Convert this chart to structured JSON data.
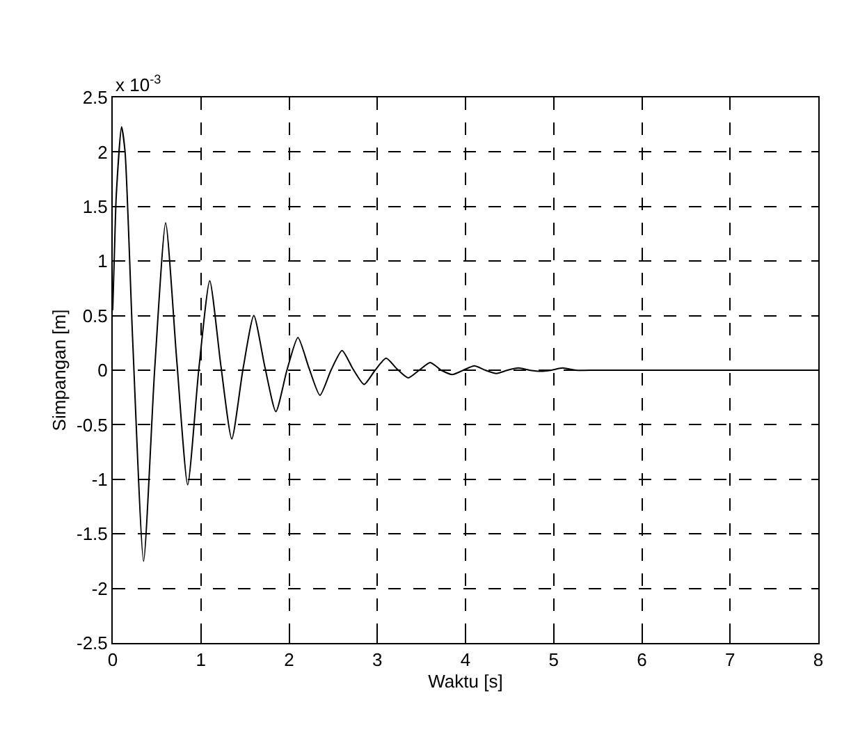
{
  "chart_data": {
    "type": "line",
    "xlabel": "Waktu [s]",
    "ylabel": "Simpangan [m]",
    "annotations": [
      "x 10$^{-3}$"
    ],
    "x": [
      0,
      0.02,
      0.04,
      0.1,
      0.14,
      0.225,
      0.35,
      0.475,
      0.6,
      0.725,
      0.85,
      0.975,
      1.1,
      1.225,
      1.35,
      1.475,
      1.6,
      1.725,
      1.85,
      1.975,
      2.1,
      2.225,
      2.35,
      2.475,
      2.6,
      2.725,
      2.85,
      2.975,
      3.1,
      3.225,
      3.35,
      3.475,
      3.6,
      3.725,
      3.85,
      3.975,
      4.1,
      4.225,
      4.35,
      4.475,
      4.6,
      4.725,
      4.85,
      4.975,
      5.1,
      5.25,
      5.5,
      6,
      6.5,
      7,
      7.5,
      8
    ],
    "series": [
      {
        "color": "#000000",
        "values": [
          0.55,
          1.1,
          1.6,
          2.23,
          2.0,
          0.3,
          -1.75,
          0,
          1.35,
          0.1,
          -1.05,
          0,
          0.82,
          0.05,
          -0.63,
          0,
          0.5,
          0.03,
          -0.38,
          0,
          0.3,
          0.02,
          -0.23,
          0,
          0.18,
          0.01,
          -0.13,
          0,
          0.11,
          0.01,
          -0.07,
          0,
          0.07,
          0,
          -0.04,
          0,
          0.04,
          0,
          -0.03,
          0,
          0.02,
          0,
          -0.01,
          0,
          0.02,
          0,
          0,
          0,
          0,
          0,
          0,
          0
        ]
      }
    ],
    "xlim": [
      0,
      8
    ],
    "xticks": [
      0,
      1,
      2,
      3,
      4,
      5,
      6,
      7,
      8
    ],
    "ylim": [
      -2.5,
      2.5
    ],
    "yticks": [
      -2.5,
      -2,
      -1.5,
      -1,
      -0.5,
      0,
      0.5,
      1,
      1.5,
      2,
      2.5
    ],
    "grid": true,
    "line_style": "solid",
    "marker": "none"
  }
}
